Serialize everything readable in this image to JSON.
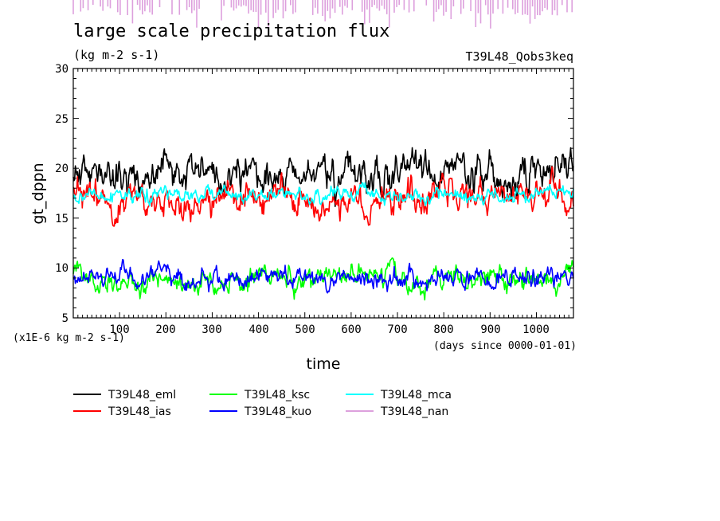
{
  "chart_data": {
    "type": "line",
    "title": "large scale precipitation flux",
    "units": "(kg m-2 s-1)",
    "experiment": "T39L48_Qobs3keq",
    "ylabel": "gt_dppn",
    "xlabel": "time",
    "y_scale_note": "(x1E-6 kg m-2 s-1)",
    "x_unit_note": "(days since 0000-01-01)",
    "xlim": [
      0,
      1080
    ],
    "ylim": [
      5,
      30
    ],
    "x_ticks": [
      100,
      200,
      300,
      400,
      500,
      600,
      700,
      800,
      900,
      1000
    ],
    "y_ticks": [
      5,
      10,
      15,
      20,
      25,
      30
    ],
    "x_tick_labels": [
      "100",
      "200",
      "300",
      "400",
      "500",
      "600",
      "700",
      "800",
      "900",
      "1000"
    ],
    "y_tick_labels": [
      "5",
      "10",
      "15",
      "20",
      "25",
      "30"
    ],
    "series": [
      {
        "name": "T39L48_eml",
        "color": "#000000",
        "mean": 19.4,
        "spread": 1.1,
        "min": 16.0,
        "max": 23.0,
        "seed": 11
      },
      {
        "name": "T39L48_ias",
        "color": "#ff0000",
        "mean": 16.9,
        "spread": 1.0,
        "min": 14.2,
        "max": 20.5,
        "seed": 23
      },
      {
        "name": "T39L48_ksc",
        "color": "#00ff00",
        "mean": 8.7,
        "spread": 0.7,
        "min": 6.8,
        "max": 11.0,
        "seed": 37
      },
      {
        "name": "T39L48_kuo",
        "color": "#0000ff",
        "mean": 8.9,
        "spread": 0.6,
        "min": 7.1,
        "max": 11.0,
        "seed": 41
      },
      {
        "name": "T39L48_mca",
        "color": "#00ffff",
        "mean": 17.3,
        "spread": 0.45,
        "min": 16.2,
        "max": 18.8,
        "seed": 53
      },
      {
        "name": "T39L48_nan",
        "color": "#dda0dd",
        "values": "NaN (drawn as off-scale marks above plot)"
      }
    ]
  }
}
